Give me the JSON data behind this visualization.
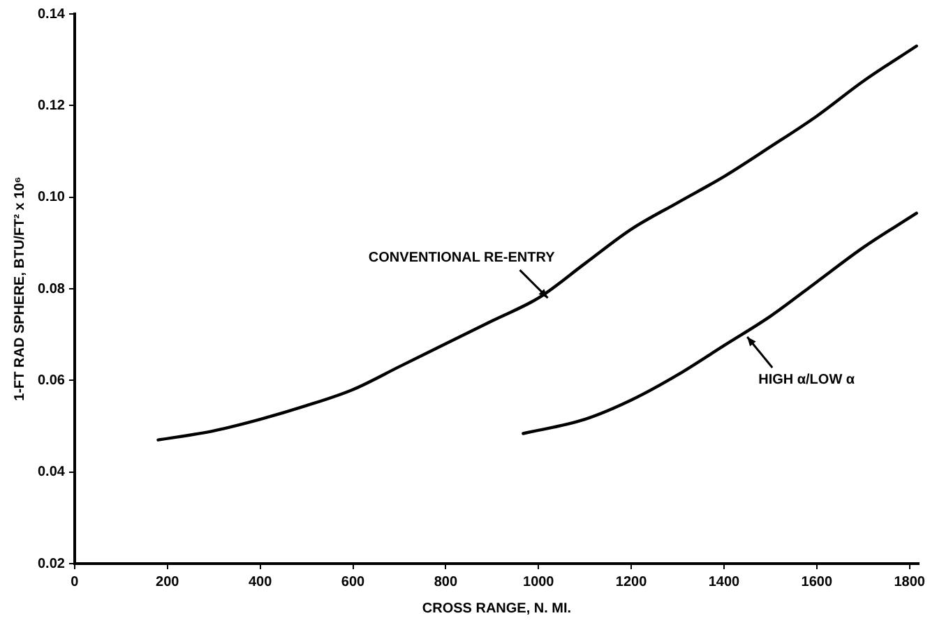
{
  "chart_data": {
    "type": "line",
    "xlabel": "CROSS RANGE, N. MI.",
    "ylabel": "1-FT RAD SPHERE, BTU/FT² x 10⁶",
    "xlim": [
      0,
      1820
    ],
    "xticks": [
      0,
      200,
      400,
      600,
      800,
      1000,
      1200,
      1400,
      1600,
      1800
    ],
    "ylim": [
      0.02,
      0.14
    ],
    "yticks": [
      0.02,
      0.04,
      0.06,
      0.08,
      {
        "value": 0.1,
        "label": "0.10"
      },
      0.12,
      0.14
    ],
    "grid": false,
    "legend": false,
    "marker": "none",
    "line_style": "solid",
    "series": [
      {
        "color": "#000000",
        "x": [
          180,
          300,
          400,
          500,
          600,
          700,
          800,
          900,
          1000,
          1100,
          1200,
          1300,
          1400,
          1500,
          1600,
          1700,
          1815
        ],
        "values": [
          0.047,
          0.049,
          0.0515,
          0.0545,
          0.058,
          0.063,
          0.068,
          0.073,
          0.078,
          0.0855,
          0.093,
          0.0988,
          0.1045,
          0.111,
          0.1177,
          0.1253,
          0.133
        ]
      },
      {
        "color": "#000000",
        "x": [
          967,
          1100,
          1200,
          1300,
          1400,
          1500,
          1600,
          1700,
          1815
        ],
        "values": [
          0.0484,
          0.0515,
          0.0557,
          0.0612,
          0.0676,
          0.074,
          0.0815,
          0.089,
          0.0965
        ]
      }
    ],
    "annotations": [
      {
        "text": "CONVENTIONAL RE-ENTRY",
        "x": 1020,
        "y": 0.078
      },
      {
        "text": "HIGH α/LOW α",
        "x": 1450,
        "y": 0.0695
      }
    ]
  }
}
